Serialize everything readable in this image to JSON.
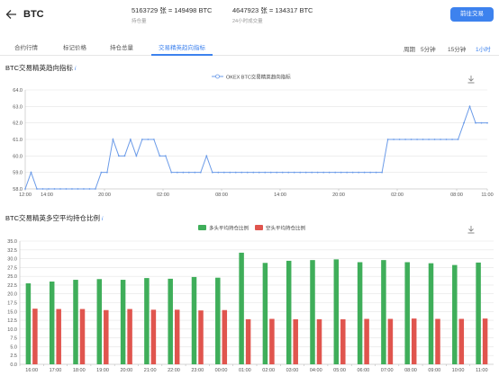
{
  "header": {
    "title": "BTC",
    "stat1_value": "5163729 张 = 149498 BTC",
    "stat1_label": "持仓量",
    "stat2_value": "4647923 张 = 134317 BTC",
    "stat2_label": "24小时成交量",
    "trade_button": "前往交易"
  },
  "tabs": [
    {
      "label": "合约行情"
    },
    {
      "label": "标记价格"
    },
    {
      "label": "持仓总量"
    },
    {
      "label": "交易精英趋向指标"
    }
  ],
  "period": {
    "label": "周期",
    "options": [
      {
        "label": "5分钟"
      },
      {
        "label": "15分钟"
      },
      {
        "label": "1小时"
      }
    ]
  },
  "colors": {
    "accent": "#3d82ee",
    "long": "#3fae5a",
    "short": "#e0554e"
  },
  "chart_data": [
    {
      "type": "line",
      "title": "BTC交易精英趋向指标",
      "series": [
        {
          "name": "OKEX BTC交易精英趋向指标"
        }
      ],
      "ylim": [
        58.0,
        64.0
      ],
      "yticks": [
        "64.0",
        "63.0",
        "62.0",
        "61.0",
        "60.0",
        "59.0",
        "58.0"
      ],
      "x_labels": [
        "12:00",
        "14:00",
        "20:00",
        "02:00",
        "08:00",
        "14:00",
        "20:00",
        "02:00",
        "08:00",
        "11:00"
      ],
      "values": [
        58.0,
        59.0,
        58.0,
        58.0,
        58.0,
        58.0,
        58.0,
        58.0,
        58.0,
        58.0,
        58.0,
        58.0,
        58.0,
        59.0,
        59.0,
        61.0,
        60.0,
        60.0,
        61.0,
        60.0,
        61.0,
        61.0,
        61.0,
        60.0,
        60.0,
        59.0,
        59.0,
        59.0,
        59.0,
        59.0,
        59.0,
        60.0,
        59.0,
        59.0,
        59.0,
        59.0,
        59.0,
        59.0,
        59.0,
        59.0,
        59.0,
        59.0,
        59.0,
        59.0,
        59.0,
        59.0,
        59.0,
        59.0,
        59.0,
        59.0,
        59.0,
        59.0,
        59.0,
        59.0,
        59.0,
        59.0,
        59.0,
        59.0,
        59.0,
        59.0,
        59.0,
        59.0,
        61.0,
        61.0,
        61.0,
        61.0,
        61.0,
        61.0,
        61.0,
        61.0,
        61.0,
        61.0,
        61.0,
        61.0,
        61.0,
        62.0,
        63.0,
        62.0,
        62.0,
        62.0
      ],
      "legend": "top-center",
      "grid": true
    },
    {
      "type": "bar",
      "title": "BTC交易精英多空平均持仓比例",
      "series": [
        {
          "name": "多头平均持仓比例",
          "values": [
            23.0,
            23.5,
            24.0,
            24.2,
            24.0,
            24.5,
            24.3,
            24.8,
            24.6,
            31.7,
            28.8,
            29.4,
            29.6,
            29.8,
            29.0,
            29.6,
            29.0,
            28.7,
            28.2,
            28.9
          ]
        },
        {
          "name": "空头平均持仓比例",
          "values": [
            15.8,
            15.7,
            15.7,
            15.4,
            15.7,
            15.5,
            15.5,
            15.3,
            15.4,
            12.8,
            12.9,
            12.8,
            12.8,
            12.8,
            12.9,
            12.9,
            13.0,
            12.9,
            12.9,
            13.0
          ]
        }
      ],
      "categories": [
        "16:00",
        "17:00",
        "18:00",
        "19:00",
        "20:00",
        "21:00",
        "22:00",
        "23:00",
        "00:00",
        "01:00",
        "02:00",
        "03:00",
        "04:00",
        "05:00",
        "06:00",
        "07:00",
        "08:00",
        "09:00",
        "10:00",
        "11:00"
      ],
      "ylim": [
        0,
        35
      ],
      "yticks": [
        "35.0",
        "32.5",
        "30.0",
        "27.5",
        "25.0",
        "22.5",
        "20.0",
        "17.5",
        "15.0",
        "12.5",
        "10.0",
        "7.5",
        "5.0",
        "2.5",
        "0.0"
      ],
      "legend": "top-center",
      "grid": true
    }
  ]
}
